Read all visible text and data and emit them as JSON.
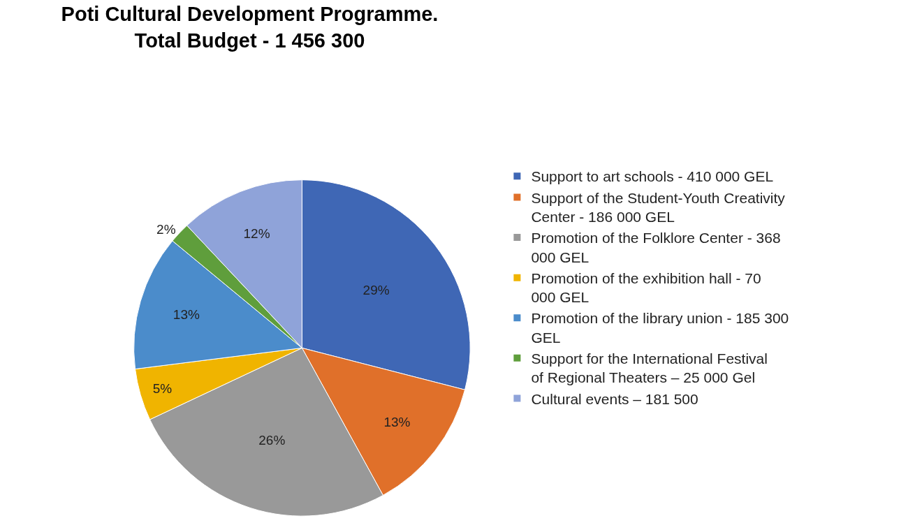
{
  "chart_data": {
    "type": "pie",
    "title": "Poti Cultural Development Programme.\nTotal Budget - 1 456 300",
    "categories": [
      "Support to art schools - 410 000 GEL",
      "Support of the Student-Youth Creativity Center - 186 000 GEL",
      "Promotion of the Folklore Center - 368 000 GEL",
      "Promotion of the exhibition hall - 70 000 GEL",
      "Promotion of the library union - 185 300 GEL",
      "Support for the International Festival of Regional Theaters – 25 000 Gel",
      "Cultural events – 181 500"
    ],
    "values": [
      29,
      13,
      26,
      5,
      13,
      2,
      12
    ],
    "value_labels": [
      "29%",
      "13%",
      "26%",
      "5%",
      "13%",
      "2%",
      "12%"
    ],
    "colors": [
      "#3f67b5",
      "#e0702a",
      "#999999",
      "#f0b400",
      "#4b8ccb",
      "#5f9e3c",
      "#8fa3d9"
    ],
    "legend": "right"
  }
}
